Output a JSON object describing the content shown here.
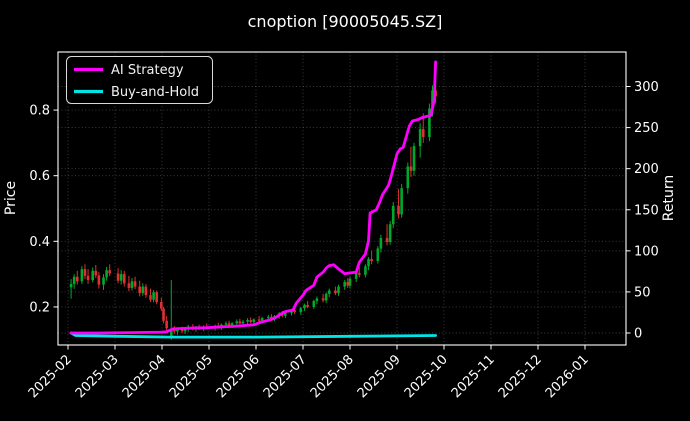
{
  "window": {
    "title": "cnoption [90005045.SZ]"
  },
  "chart_data": {
    "type": "candlestick",
    "title": "cnoption [90005045.SZ]",
    "grid": true,
    "background": "#000000",
    "text_color": "#ffffff",
    "grid_color": "#6b6b6b",
    "x_ticks": [
      "2025-02",
      "2025-03",
      "2025-04",
      "2025-05",
      "2025-06",
      "2025-07",
      "2025-08",
      "2025-09",
      "2025-10",
      "2025-11",
      "2025-12",
      "2026-01"
    ],
    "left_axis": {
      "label": "Price",
      "ticks": [
        0.2,
        0.4,
        0.6,
        0.8
      ],
      "range": [
        0.084,
        0.977
      ]
    },
    "right_axis": {
      "label": "Return",
      "ticks": [
        0,
        50,
        100,
        150,
        200,
        250,
        300
      ],
      "range": [
        -14.6,
        342
      ]
    },
    "legend": {
      "position": "upper-left",
      "items": [
        {
          "label": "AI Strategy",
          "color": "#ff00ff"
        },
        {
          "label": "Buy-and-Hold",
          "color": "#00e5e5"
        }
      ]
    },
    "candles": {
      "columns": [
        "date",
        "open",
        "high",
        "low",
        "close"
      ],
      "up_color": "#00a92c",
      "down_color": "#e03131",
      "rows": [
        [
          "2025-02-03",
          0.26,
          0.285,
          0.225,
          0.27
        ],
        [
          "2025-02-05",
          0.27,
          0.3,
          0.255,
          0.292
        ],
        [
          "2025-02-07",
          0.292,
          0.31,
          0.268,
          0.278
        ],
        [
          "2025-02-10",
          0.278,
          0.325,
          0.27,
          0.315
        ],
        [
          "2025-02-12",
          0.315,
          0.33,
          0.285,
          0.295
        ],
        [
          "2025-02-14",
          0.295,
          0.315,
          0.27,
          0.282
        ],
        [
          "2025-02-17",
          0.282,
          0.32,
          0.275,
          0.31
        ],
        [
          "2025-02-19",
          0.31,
          0.328,
          0.288,
          0.296
        ],
        [
          "2025-02-21",
          0.296,
          0.306,
          0.256,
          0.268
        ],
        [
          "2025-02-24",
          0.268,
          0.3,
          0.252,
          0.29
        ],
        [
          "2025-02-26",
          0.29,
          0.322,
          0.28,
          0.312
        ],
        [
          "2025-02-28",
          0.312,
          0.33,
          0.294,
          0.302
        ],
        [
          "2025-03-03",
          0.302,
          0.318,
          0.272,
          0.28
        ],
        [
          "2025-03-05",
          0.28,
          0.312,
          0.268,
          0.3
        ],
        [
          "2025-03-07",
          0.3,
          0.31,
          0.262,
          0.272
        ],
        [
          "2025-03-10",
          0.272,
          0.295,
          0.248,
          0.258
        ],
        [
          "2025-03-12",
          0.258,
          0.288,
          0.25,
          0.278
        ],
        [
          "2025-03-14",
          0.278,
          0.292,
          0.254,
          0.262
        ],
        [
          "2025-03-17",
          0.262,
          0.28,
          0.232,
          0.242
        ],
        [
          "2025-03-19",
          0.242,
          0.272,
          0.234,
          0.262
        ],
        [
          "2025-03-21",
          0.262,
          0.27,
          0.228,
          0.236
        ],
        [
          "2025-03-24",
          0.236,
          0.256,
          0.215,
          0.222
        ],
        [
          "2025-03-26",
          0.222,
          0.252,
          0.214,
          0.245
        ],
        [
          "2025-03-28",
          0.245,
          0.25,
          0.208,
          0.215
        ],
        [
          "2025-03-31",
          0.215,
          0.228,
          0.188,
          0.195
        ],
        [
          "2025-04-02",
          0.195,
          0.2,
          0.15,
          0.158
        ],
        [
          "2025-04-04",
          0.158,
          0.172,
          0.128,
          0.135
        ],
        [
          "2025-04-07",
          0.112,
          0.282,
          0.1,
          0.13
        ],
        [
          "2025-04-09",
          0.13,
          0.142,
          0.118,
          0.125
        ],
        [
          "2025-04-11",
          0.125,
          0.138,
          0.115,
          0.133
        ],
        [
          "2025-04-14",
          0.133,
          0.14,
          0.12,
          0.126
        ],
        [
          "2025-04-16",
          0.126,
          0.136,
          0.118,
          0.132
        ],
        [
          "2025-04-18",
          0.132,
          0.145,
          0.124,
          0.14
        ],
        [
          "2025-04-21",
          0.14,
          0.148,
          0.128,
          0.133
        ],
        [
          "2025-04-23",
          0.133,
          0.142,
          0.124,
          0.138
        ],
        [
          "2025-04-25",
          0.138,
          0.146,
          0.13,
          0.135
        ],
        [
          "2025-04-28",
          0.135,
          0.144,
          0.126,
          0.14
        ],
        [
          "2025-04-30",
          0.14,
          0.15,
          0.132,
          0.136
        ],
        [
          "2025-05-05",
          0.136,
          0.146,
          0.128,
          0.142
        ],
        [
          "2025-05-07",
          0.142,
          0.152,
          0.134,
          0.138
        ],
        [
          "2025-05-09",
          0.138,
          0.15,
          0.13,
          0.146
        ],
        [
          "2025-05-12",
          0.146,
          0.156,
          0.138,
          0.15
        ],
        [
          "2025-05-14",
          0.15,
          0.158,
          0.14,
          0.144
        ],
        [
          "2025-05-16",
          0.144,
          0.154,
          0.136,
          0.15
        ],
        [
          "2025-05-19",
          0.15,
          0.162,
          0.142,
          0.156
        ],
        [
          "2025-05-21",
          0.156,
          0.164,
          0.146,
          0.15
        ],
        [
          "2025-05-23",
          0.15,
          0.16,
          0.142,
          0.155
        ],
        [
          "2025-05-26",
          0.155,
          0.166,
          0.148,
          0.16
        ],
        [
          "2025-05-28",
          0.16,
          0.168,
          0.15,
          0.154
        ],
        [
          "2025-05-30",
          0.154,
          0.165,
          0.146,
          0.162
        ],
        [
          "2025-06-03",
          0.162,
          0.172,
          0.152,
          0.158
        ],
        [
          "2025-06-05",
          0.158,
          0.17,
          0.15,
          0.166
        ],
        [
          "2025-06-09",
          0.166,
          0.176,
          0.158,
          0.17
        ],
        [
          "2025-06-11",
          0.17,
          0.178,
          0.16,
          0.164
        ],
        [
          "2025-06-13",
          0.164,
          0.175,
          0.156,
          0.172
        ],
        [
          "2025-06-16",
          0.172,
          0.184,
          0.164,
          0.18
        ],
        [
          "2025-06-18",
          0.18,
          0.188,
          0.168,
          0.173
        ],
        [
          "2025-06-20",
          0.173,
          0.186,
          0.166,
          0.182
        ],
        [
          "2025-06-24",
          0.182,
          0.194,
          0.174,
          0.19
        ],
        [
          "2025-06-26",
          0.19,
          0.198,
          0.178,
          0.184
        ],
        [
          "2025-06-30",
          0.184,
          0.2,
          0.176,
          0.196
        ],
        [
          "2025-07-02",
          0.196,
          0.21,
          0.188,
          0.206
        ],
        [
          "2025-07-04",
          0.206,
          0.218,
          0.196,
          0.2
        ],
        [
          "2025-07-08",
          0.2,
          0.222,
          0.194,
          0.218
        ],
        [
          "2025-07-10",
          0.218,
          0.232,
          0.208,
          0.226
        ],
        [
          "2025-07-14",
          0.226,
          0.24,
          0.214,
          0.22
        ],
        [
          "2025-07-16",
          0.22,
          0.244,
          0.212,
          0.24
        ],
        [
          "2025-07-18",
          0.24,
          0.256,
          0.23,
          0.25
        ],
        [
          "2025-07-22",
          0.25,
          0.262,
          0.236,
          0.242
        ],
        [
          "2025-07-24",
          0.242,
          0.268,
          0.234,
          0.262
        ],
        [
          "2025-07-28",
          0.262,
          0.282,
          0.252,
          0.276
        ],
        [
          "2025-07-30",
          0.276,
          0.288,
          0.258,
          0.265
        ],
        [
          "2025-08-01",
          0.265,
          0.292,
          0.256,
          0.286
        ],
        [
          "2025-08-05",
          0.286,
          0.31,
          0.276,
          0.304
        ],
        [
          "2025-08-07",
          0.304,
          0.322,
          0.29,
          0.298
        ],
        [
          "2025-08-11",
          0.298,
          0.33,
          0.29,
          0.324
        ],
        [
          "2025-08-13",
          0.324,
          0.352,
          0.312,
          0.346
        ],
        [
          "2025-08-15",
          0.346,
          0.372,
          0.33,
          0.34
        ],
        [
          "2025-08-19",
          0.34,
          0.385,
          0.332,
          0.378
        ],
        [
          "2025-08-21",
          0.378,
          0.42,
          0.366,
          0.41
        ],
        [
          "2025-08-25",
          0.41,
          0.452,
          0.388,
          0.398
        ],
        [
          "2025-08-27",
          0.398,
          0.462,
          0.39,
          0.452
        ],
        [
          "2025-08-29",
          0.452,
          0.52,
          0.44,
          0.508
        ],
        [
          "2025-09-02",
          0.508,
          0.56,
          0.47,
          0.482
        ],
        [
          "2025-09-04",
          0.482,
          0.575,
          0.472,
          0.562
        ],
        [
          "2025-09-08",
          0.562,
          0.64,
          0.545,
          0.628
        ],
        [
          "2025-09-10",
          0.628,
          0.688,
          0.596,
          0.615
        ],
        [
          "2025-09-12",
          0.615,
          0.7,
          0.6,
          0.69
        ],
        [
          "2025-09-16",
          0.69,
          0.76,
          0.655,
          0.742
        ],
        [
          "2025-09-18",
          0.742,
          0.79,
          0.7,
          0.718
        ],
        [
          "2025-09-22",
          0.718,
          0.82,
          0.705,
          0.805
        ],
        [
          "2025-09-24",
          0.805,
          0.875,
          0.78,
          0.86
        ],
        [
          "2025-09-26",
          0.86,
          0.88,
          0.82,
          0.842
        ]
      ]
    },
    "series": [
      {
        "name": "AI Strategy",
        "color": "#ff00ff",
        "axis": "right",
        "width": 2.8,
        "points": [
          [
            "2025-02-03",
            0
          ],
          [
            "2025-02-20",
            0
          ],
          [
            "2025-03-10",
            0.5
          ],
          [
            "2025-03-31",
            1
          ],
          [
            "2025-04-04",
            1.5
          ],
          [
            "2025-04-08",
            5
          ],
          [
            "2025-04-18",
            6
          ],
          [
            "2025-04-30",
            6.5
          ],
          [
            "2025-05-09",
            7.5
          ],
          [
            "2025-05-16",
            8
          ],
          [
            "2025-05-23",
            9
          ],
          [
            "2025-05-30",
            10
          ],
          [
            "2025-06-04",
            13
          ],
          [
            "2025-06-10",
            16
          ],
          [
            "2025-06-13",
            18
          ],
          [
            "2025-06-17",
            23
          ],
          [
            "2025-06-20",
            26
          ],
          [
            "2025-06-25",
            28
          ],
          [
            "2025-06-27",
            36
          ],
          [
            "2025-07-01",
            46
          ],
          [
            "2025-07-03",
            52
          ],
          [
            "2025-07-08",
            58
          ],
          [
            "2025-07-10",
            68
          ],
          [
            "2025-07-14",
            74
          ],
          [
            "2025-07-16",
            79
          ],
          [
            "2025-07-18",
            82
          ],
          [
            "2025-07-21",
            83
          ],
          [
            "2025-07-24",
            78
          ],
          [
            "2025-07-28",
            72
          ],
          [
            "2025-07-31",
            73
          ],
          [
            "2025-08-05",
            74
          ],
          [
            "2025-08-07",
            86
          ],
          [
            "2025-08-11",
            96
          ],
          [
            "2025-08-13",
            112
          ],
          [
            "2025-08-14",
            146
          ],
          [
            "2025-08-18",
            150
          ],
          [
            "2025-08-20",
            158
          ],
          [
            "2025-08-22",
            168
          ],
          [
            "2025-08-26",
            180
          ],
          [
            "2025-08-28",
            193
          ],
          [
            "2025-09-01",
            218
          ],
          [
            "2025-09-03",
            224
          ],
          [
            "2025-09-05",
            226
          ],
          [
            "2025-09-09",
            252
          ],
          [
            "2025-09-11",
            258
          ],
          [
            "2025-09-15",
            260
          ],
          [
            "2025-09-17",
            262
          ],
          [
            "2025-09-19",
            263
          ],
          [
            "2025-09-23",
            265
          ],
          [
            "2025-09-25",
            283
          ],
          [
            "2025-09-26",
            330
          ]
        ]
      },
      {
        "name": "Buy-and-Hold",
        "color": "#00e5e5",
        "axis": "right",
        "width": 2.8,
        "points": [
          [
            "2025-02-03",
            0
          ],
          [
            "2025-02-06",
            -3
          ],
          [
            "2025-03-03",
            -4
          ],
          [
            "2025-04-07",
            -5
          ],
          [
            "2025-06-02",
            -5
          ],
          [
            "2025-08-01",
            -4
          ],
          [
            "2025-09-26",
            -3
          ]
        ]
      }
    ]
  }
}
